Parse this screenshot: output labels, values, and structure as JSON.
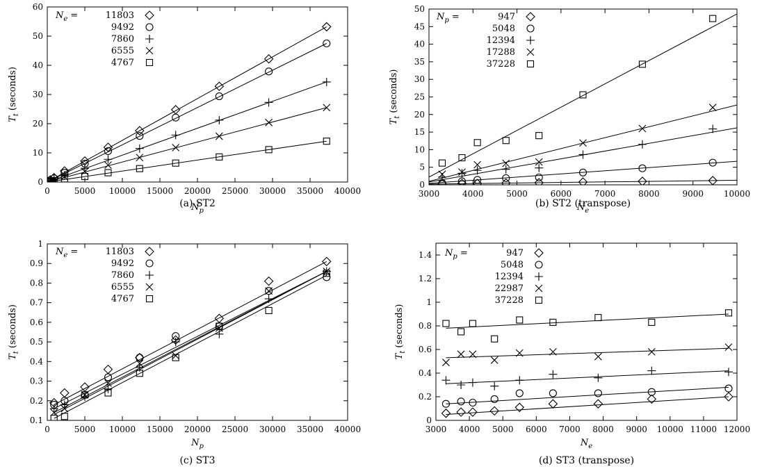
{
  "chart_data": [
    {
      "id": "a",
      "type": "scatter",
      "caption": "(a) ST2",
      "xlabel": "N_p",
      "ylabel": "T_t (seconds)",
      "xlim": [
        0,
        40000
      ],
      "ylim": [
        0,
        60
      ],
      "xticks": [
        0,
        5000,
        10000,
        15000,
        20000,
        25000,
        30000,
        35000,
        40000
      ],
      "yticks": [
        0,
        10,
        20,
        30,
        40,
        50,
        60
      ],
      "grid": false,
      "legend_position": "top-left",
      "legend_title": "N_e =",
      "series": [
        {
          "name": "11803",
          "marker": "diamond",
          "x": [
            100,
            400,
            900,
            2300,
            5000,
            8100,
            12300,
            17100,
            22900,
            29500,
            37200
          ],
          "y": [
            0.2,
            0.7,
            1.5,
            3.8,
            7.2,
            11.9,
            17.6,
            24.8,
            32.8,
            42.2,
            53.2
          ],
          "fit": [
            [
              0,
              0
            ],
            [
              37200,
              53.2
            ]
          ]
        },
        {
          "name": "9492",
          "marker": "circle",
          "x": [
            100,
            400,
            900,
            2300,
            5000,
            8100,
            12300,
            17100,
            22900,
            29500,
            37200
          ],
          "y": [
            0.2,
            0.6,
            1.3,
            3.2,
            6.3,
            10.6,
            15.8,
            22.1,
            29.4,
            37.9,
            47.5
          ],
          "fit": [
            [
              0,
              0
            ],
            [
              37200,
              47.5
            ]
          ]
        },
        {
          "name": "7860",
          "marker": "plus",
          "x": [
            100,
            400,
            900,
            2300,
            5000,
            8100,
            12300,
            17100,
            22900,
            29500,
            37200
          ],
          "y": [
            0.2,
            0.5,
            1.0,
            2.4,
            4.7,
            7.8,
            11.5,
            16.1,
            21.2,
            27.3,
            34.3
          ],
          "fit": [
            [
              0,
              0
            ],
            [
              37200,
              34.3
            ]
          ]
        },
        {
          "name": "6555",
          "marker": "cross",
          "x": [
            100,
            400,
            900,
            2300,
            5000,
            8100,
            12300,
            17100,
            22900,
            29500,
            37200
          ],
          "y": [
            0.1,
            0.4,
            0.8,
            1.8,
            3.6,
            5.8,
            8.4,
            11.8,
            15.7,
            20.4,
            25.5
          ],
          "fit": [
            [
              0,
              0
            ],
            [
              37200,
              25.5
            ]
          ]
        },
        {
          "name": "4767",
          "marker": "square",
          "x": [
            100,
            400,
            900,
            2300,
            5000,
            8100,
            12300,
            17100,
            22900,
            29500,
            37200
          ],
          "y": [
            0.1,
            0.2,
            0.5,
            1.1,
            1.9,
            3.2,
            4.6,
            6.5,
            8.6,
            11.1,
            14.0
          ],
          "fit": [
            [
              0,
              0
            ],
            [
              37200,
              14.0
            ]
          ]
        }
      ]
    },
    {
      "id": "b",
      "type": "scatter",
      "caption": "(b) ST2 (transpose)",
      "xlabel": "N_e",
      "ylabel": "T_t (seconds)",
      "xlim": [
        3000,
        10000
      ],
      "ylim": [
        0,
        50
      ],
      "xticks": [
        3000,
        4000,
        5000,
        6000,
        7000,
        8000,
        9000,
        10000
      ],
      "yticks": [
        0,
        5,
        10,
        15,
        20,
        25,
        30,
        35,
        40,
        45,
        50
      ],
      "grid": false,
      "legend_position": "top-left",
      "legend_title": "N_p =",
      "series": [
        {
          "name": "947",
          "marker": "diamond",
          "x": [
            3300,
            3750,
            4100,
            4750,
            5500,
            6500,
            7850,
            9450
          ],
          "y": [
            0.3,
            0.4,
            0.4,
            0.5,
            0.6,
            0.8,
            1.0,
            1.2
          ],
          "fit": [
            [
              3000,
              0.2
            ],
            [
              10000,
              1.3
            ]
          ]
        },
        {
          "name": "5048",
          "marker": "circle",
          "x": [
            3300,
            3750,
            4100,
            4750,
            5500,
            6500,
            7850,
            9450
          ],
          "y": [
            0.5,
            1.0,
            1.4,
            1.9,
            2.1,
            3.5,
            4.7,
            6.3
          ],
          "fit": [
            [
              3000,
              0.4
            ],
            [
              10000,
              6.7
            ]
          ]
        },
        {
          "name": "12394",
          "marker": "plus",
          "x": [
            3300,
            3750,
            4100,
            4750,
            5500,
            6500,
            7850,
            9450
          ],
          "y": [
            2.2,
            3.3,
            4.1,
            4.4,
            4.8,
            8.6,
            11.5,
            15.9
          ],
          "fit": [
            [
              3000,
              0.8
            ],
            [
              10000,
              16.2
            ]
          ]
        },
        {
          "name": "17288",
          "marker": "cross",
          "x": [
            3300,
            3750,
            4100,
            4750,
            5500,
            6500,
            7850,
            9450
          ],
          "y": [
            3.0,
            3.6,
            5.7,
            6.1,
            6.5,
            11.9,
            16.0,
            22.0
          ],
          "fit": [
            [
              3000,
              1.0
            ],
            [
              10000,
              22.7
            ]
          ]
        },
        {
          "name": "37228",
          "marker": "square",
          "x": [
            3300,
            3750,
            4100,
            4750,
            5500,
            6500,
            7850,
            9450
          ],
          "y": [
            6.2,
            7.7,
            12.0,
            12.6,
            14.0,
            25.6,
            34.3,
            47.3
          ],
          "fit": [
            [
              3000,
              2.2
            ],
            [
              10000,
              48.6
            ]
          ]
        }
      ]
    },
    {
      "id": "c",
      "type": "scatter",
      "caption": "(c) ST3",
      "xlabel": "N_p",
      "ylabel": "T_t (seconds)",
      "xlim": [
        0,
        40000
      ],
      "ylim": [
        0.1,
        1.0
      ],
      "xticks": [
        0,
        5000,
        10000,
        15000,
        20000,
        25000,
        30000,
        35000,
        40000
      ],
      "yticks": [
        0.1,
        0.2,
        0.3,
        0.4,
        0.5,
        0.6,
        0.7,
        0.8,
        0.9,
        1
      ],
      "grid": false,
      "legend_position": "top-left",
      "legend_title": "N_e =",
      "series": [
        {
          "name": "11803",
          "marker": "diamond",
          "x": [
            900,
            2300,
            5000,
            8100,
            12300,
            17100,
            22900,
            29500,
            37200
          ],
          "y": [
            0.19,
            0.24,
            0.27,
            0.36,
            0.42,
            0.51,
            0.62,
            0.81,
            0.91
          ],
          "fit": [
            [
              900,
              0.18
            ],
            [
              37200,
              0.91
            ]
          ]
        },
        {
          "name": "9492",
          "marker": "circle",
          "x": [
            900,
            2300,
            5000,
            8100,
            12300,
            17100,
            22900,
            29500,
            37200
          ],
          "y": [
            0.18,
            0.2,
            0.23,
            0.32,
            0.42,
            0.53,
            0.58,
            0.76,
            0.83
          ],
          "fit": [
            [
              900,
              0.16
            ],
            [
              37200,
              0.86
            ]
          ]
        },
        {
          "name": "7860",
          "marker": "plus",
          "x": [
            900,
            2300,
            5000,
            8100,
            12300,
            17100,
            22900,
            29500,
            37200
          ],
          "y": [
            0.16,
            0.18,
            0.22,
            0.26,
            0.37,
            0.5,
            0.54,
            0.72,
            0.86
          ],
          "fit": [
            [
              900,
              0.14
            ],
            [
              37200,
              0.86
            ]
          ]
        },
        {
          "name": "6555",
          "marker": "cross",
          "x": [
            900,
            2300,
            5000,
            8100,
            12300,
            17100,
            22900,
            29500,
            37200
          ],
          "y": [
            0.14,
            0.16,
            0.23,
            0.29,
            0.39,
            0.43,
            0.57,
            0.76,
            0.86
          ],
          "fit": [
            [
              900,
              0.13
            ],
            [
              37200,
              0.86
            ]
          ]
        },
        {
          "name": "4767",
          "marker": "square",
          "x": [
            900,
            2300,
            5000,
            8100,
            12300,
            17100,
            22900,
            29500,
            37200
          ],
          "y": [
            0.11,
            0.12,
            0.23,
            0.24,
            0.34,
            0.42,
            0.58,
            0.66,
            0.85
          ],
          "fit": [
            [
              900,
              0.11
            ],
            [
              37200,
              0.84
            ]
          ]
        }
      ]
    },
    {
      "id": "d",
      "type": "scatter",
      "caption": "(d) ST3 (transpose)",
      "xlabel": "N_e",
      "ylabel": "T_t (seconds)",
      "xlim": [
        3000,
        12000
      ],
      "ylim": [
        0,
        1.5
      ],
      "xticks": [
        3000,
        4000,
        5000,
        6000,
        7000,
        8000,
        9000,
        10000,
        11000,
        12000
      ],
      "yticks": [
        0,
        0.2,
        0.4,
        0.6,
        0.8,
        1,
        1.2,
        1.4
      ],
      "grid": false,
      "legend_position": "top-left",
      "legend_title": "N_p =",
      "series": [
        {
          "name": "947",
          "marker": "diamond",
          "x": [
            3300,
            3750,
            4100,
            4750,
            5500,
            6500,
            7850,
            9450,
            11750
          ],
          "y": [
            0.06,
            0.07,
            0.07,
            0.08,
            0.11,
            0.14,
            0.14,
            0.18,
            0.2
          ],
          "fit": [
            [
              3300,
              0.05
            ],
            [
              11750,
              0.2
            ]
          ]
        },
        {
          "name": "5048",
          "marker": "circle",
          "x": [
            3300,
            3750,
            4100,
            4750,
            5500,
            6500,
            7850,
            9450,
            11750
          ],
          "y": [
            0.14,
            0.16,
            0.15,
            0.18,
            0.23,
            0.23,
            0.23,
            0.24,
            0.27
          ],
          "fit": [
            [
              3300,
              0.14
            ],
            [
              11750,
              0.28
            ]
          ]
        },
        {
          "name": "12394",
          "marker": "plus",
          "x": [
            3300,
            3750,
            4100,
            4750,
            5500,
            6500,
            7850,
            9450,
            11750
          ],
          "y": [
            0.34,
            0.3,
            0.32,
            0.29,
            0.34,
            0.39,
            0.36,
            0.42,
            0.41
          ],
          "fit": [
            [
              3300,
              0.31
            ],
            [
              11750,
              0.42
            ]
          ]
        },
        {
          "name": "22987",
          "marker": "cross",
          "x": [
            3300,
            3750,
            4100,
            4750,
            5500,
            6500,
            7850,
            9450,
            11750
          ],
          "y": [
            0.49,
            0.56,
            0.56,
            0.51,
            0.57,
            0.58,
            0.54,
            0.58,
            0.62
          ],
          "fit": [
            [
              3300,
              0.53
            ],
            [
              11750,
              0.61
            ]
          ]
        },
        {
          "name": "37228",
          "marker": "square",
          "x": [
            3300,
            3750,
            4100,
            4750,
            5500,
            6500,
            7850,
            9450,
            11750
          ],
          "y": [
            0.82,
            0.75,
            0.82,
            0.69,
            0.85,
            0.83,
            0.87,
            0.83,
            0.91
          ],
          "fit": [
            [
              3300,
              0.78
            ],
            [
              11750,
              0.9
            ]
          ]
        }
      ]
    }
  ]
}
